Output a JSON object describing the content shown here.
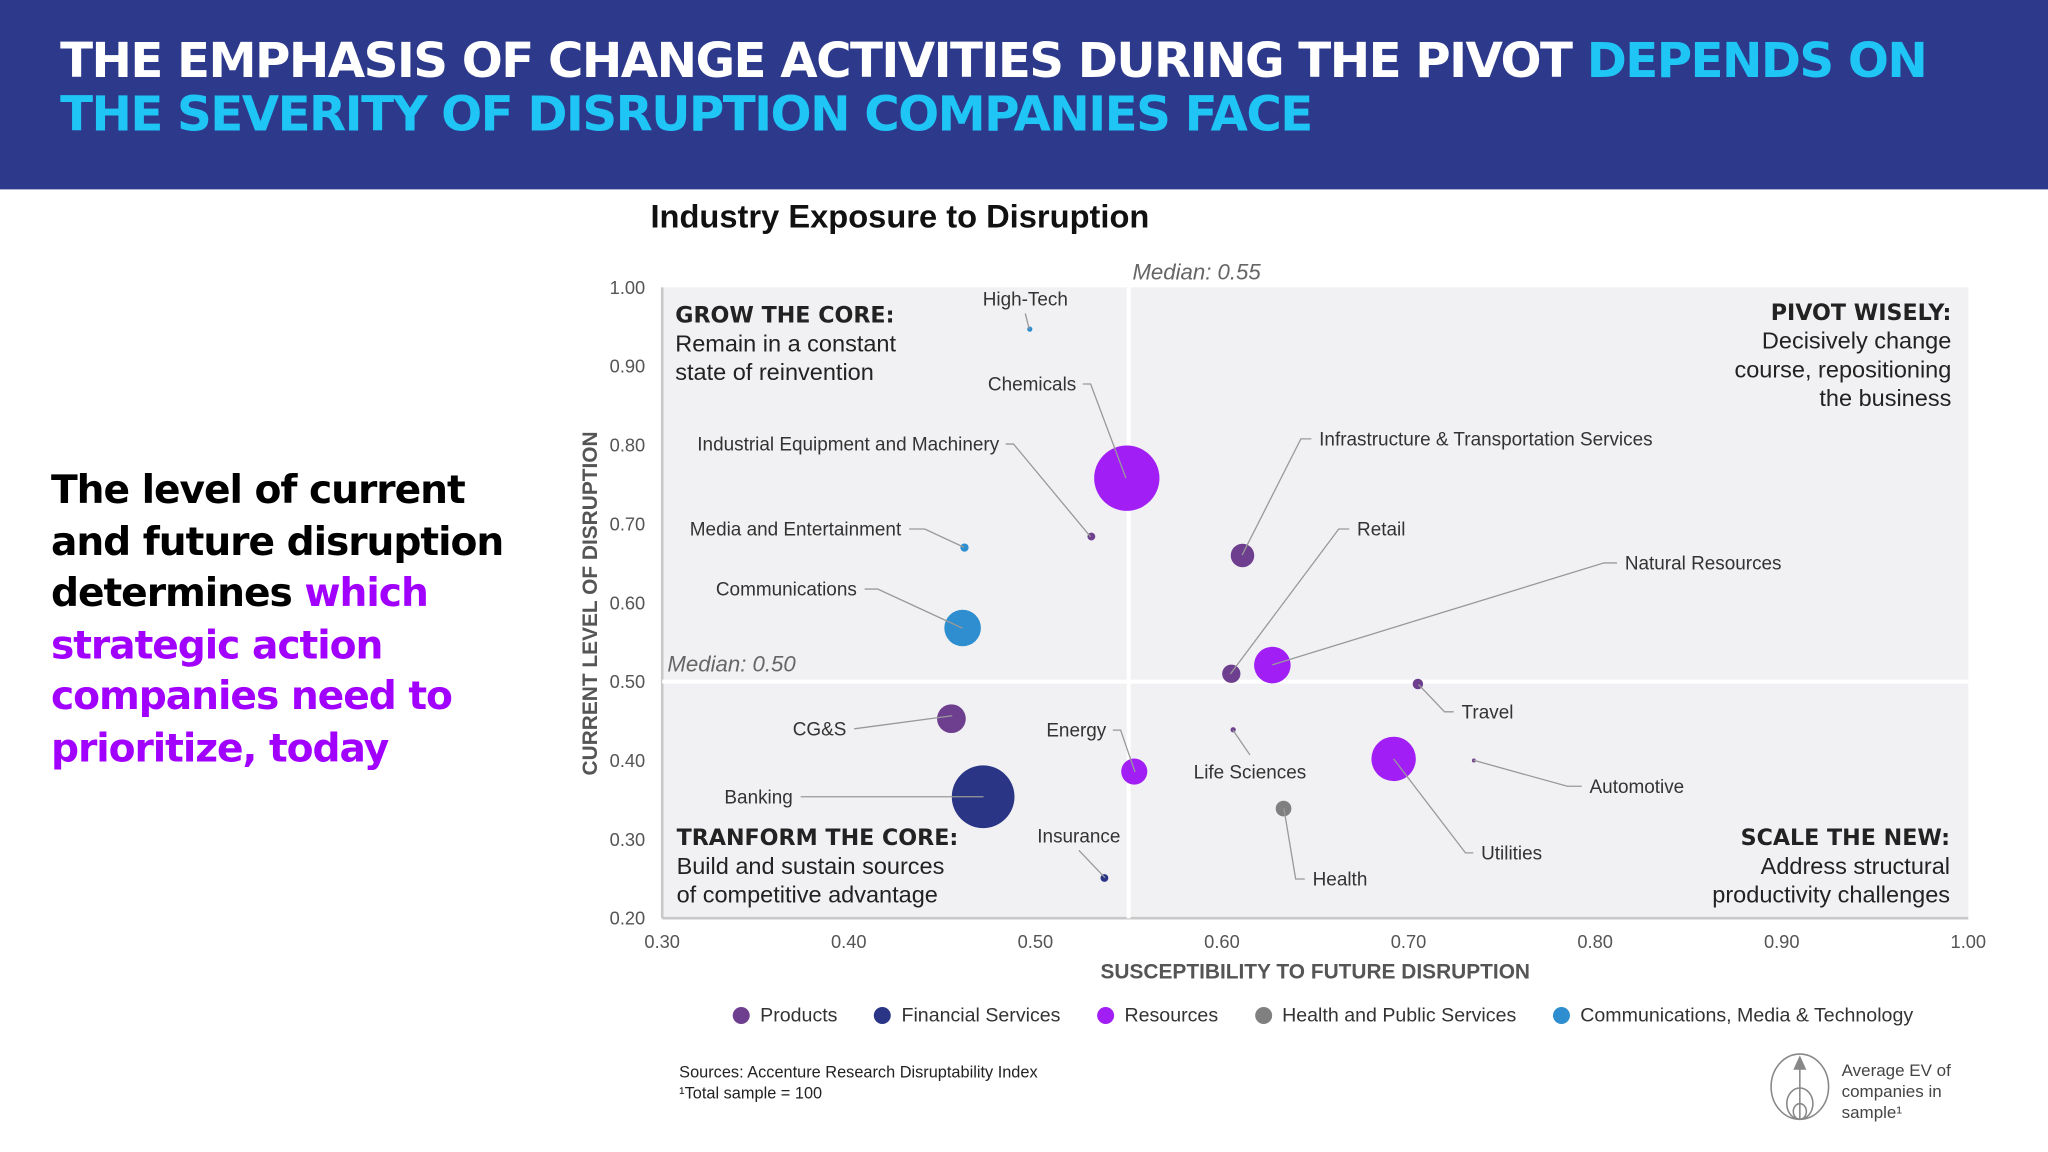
{
  "header": {
    "title_white": "THE EMPHASIS OF CHANGE ACTIVITIES DURING THE PIVOT ",
    "title_accent": "DEPENDS ON THE SEVERITY OF DISRUPTION COMPANIES FACE"
  },
  "left_panel": {
    "text_black": "The level of current and future disruption determines ",
    "text_accent": "which strategic action companies need to prioritize, today"
  },
  "colors": {
    "header_bg": "#2d3a8c",
    "accent_cyan": "#1ec5f5",
    "accent_purple": "#a100ff",
    "plot_bg": "#f1f1f3"
  },
  "chart_data": {
    "type": "scatter",
    "subtype": "bubble",
    "title": "Industry Exposure to Disruption",
    "xlabel": "SUSCEPTIBILITY TO FUTURE DISRUPTION",
    "ylabel": "CURRENT LEVEL OF DISRUPTION",
    "xlim": [
      0.3,
      1.0
    ],
    "ylim": [
      0.2,
      1.0
    ],
    "xticks": [
      "0.30",
      "0.40",
      "0.50",
      "0.60",
      "0.70",
      "0.80",
      "0.90",
      "1.00"
    ],
    "yticks": [
      "1.00",
      "0.90",
      "0.80",
      "0.70",
      "0.60",
      "0.50",
      "0.40",
      "0.30",
      "0.20"
    ],
    "grid": false,
    "medians": {
      "x": 0.55,
      "y": 0.5,
      "x_label": "Median: 0.55",
      "y_label": "Median: 0.50"
    },
    "quadrants": [
      {
        "title": "GROW THE CORE:",
        "text": [
          "Remain in a constant",
          "state of reinvention"
        ],
        "position": "top-left"
      },
      {
        "title": "PIVOT WISELY:",
        "text": [
          "Decisively change",
          "course, repositioning",
          "the business"
        ],
        "position": "top-right"
      },
      {
        "title": "TRANFORM THE CORE:",
        "text": [
          "Build and sustain sources",
          "of competitive advantage"
        ],
        "position": "bottom-left"
      },
      {
        "title": "SCALE THE NEW:",
        "text": [
          "Address structural",
          "productivity challenges"
        ],
        "position": "bottom-right"
      }
    ],
    "groups": [
      {
        "name": "Products",
        "color": "#6e3f8f"
      },
      {
        "name": "Financial Services",
        "color": "#2a3585"
      },
      {
        "name": "Resources",
        "color": "#a11ff5"
      },
      {
        "name": "Health and Public Services",
        "color": "#808080"
      },
      {
        "name": "Communications, Media & Technology",
        "color": "#2e8ecf"
      }
    ],
    "size_legend": "Average EV of companies in sample¹",
    "points": [
      {
        "name": "High-Tech",
        "x": 0.497,
        "y": 0.947,
        "group": 4,
        "size": 4
      },
      {
        "name": "Chemicals",
        "x": 0.549,
        "y": 0.758,
        "group": 2,
        "size": 625
      },
      {
        "name": "Industrial Equipment and Machinery",
        "x": 0.53,
        "y": 0.684,
        "group": 0,
        "size": 9
      },
      {
        "name": "Media and Entertainment",
        "x": 0.462,
        "y": 0.67,
        "group": 4,
        "size": 10
      },
      {
        "name": "Communications",
        "x": 0.461,
        "y": 0.568,
        "group": 4,
        "size": 196
      },
      {
        "name": "Infrastructure & Transportation Services",
        "x": 0.611,
        "y": 0.66,
        "group": 0,
        "size": 81
      },
      {
        "name": "Retail",
        "x": 0.605,
        "y": 0.51,
        "group": 0,
        "size": 49
      },
      {
        "name": "Natural Resources",
        "x": 0.627,
        "y": 0.521,
        "group": 2,
        "size": 196
      },
      {
        "name": "Travel",
        "x": 0.705,
        "y": 0.497,
        "group": 0,
        "size": 16
      },
      {
        "name": "Life Sciences",
        "x": 0.606,
        "y": 0.439,
        "group": 0,
        "size": 4
      },
      {
        "name": "Utilities",
        "x": 0.692,
        "y": 0.402,
        "group": 2,
        "size": 289
      },
      {
        "name": "Automotive",
        "x": 0.735,
        "y": 0.4,
        "group": 0,
        "size": 2
      },
      {
        "name": "Health",
        "x": 0.633,
        "y": 0.339,
        "group": 3,
        "size": 36
      },
      {
        "name": "CG&S",
        "x": 0.455,
        "y": 0.453,
        "group": 0,
        "size": 121
      },
      {
        "name": "Banking",
        "x": 0.472,
        "y": 0.354,
        "group": 1,
        "size": 576
      },
      {
        "name": "Energy",
        "x": 0.553,
        "y": 0.386,
        "group": 2,
        "size": 100
      },
      {
        "name": "Insurance",
        "x": 0.537,
        "y": 0.251,
        "group": 1,
        "size": 9
      }
    ]
  },
  "footer": {
    "sources": "Sources: Accenture Research Disruptability Index",
    "sample_note": "¹Total sample = 100"
  }
}
